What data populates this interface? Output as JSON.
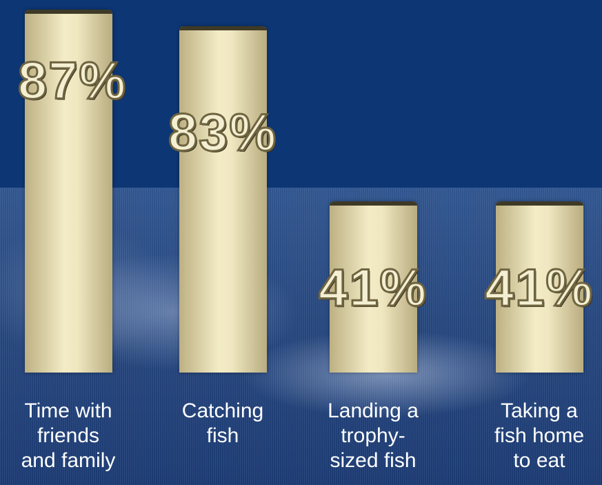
{
  "chart_data": {
    "type": "bar",
    "categories": [
      "Time with friends and family",
      "Catching fish",
      "Landing a trophy-sized fish",
      "Taking a fish home to eat"
    ],
    "category_lines": [
      [
        "Time with",
        "friends",
        "and family"
      ],
      [
        "Catching",
        "fish"
      ],
      [
        "Landing a",
        "trophy-",
        "sized fish"
      ],
      [
        "Taking a",
        "fish home",
        "to eat"
      ]
    ],
    "values": [
      87,
      83,
      41,
      41
    ],
    "data_labels": [
      "87%",
      "83%",
      "41%",
      "41%"
    ],
    "ylim": [
      0,
      100
    ],
    "colors": {
      "background": "#0d3674",
      "bar": "#f3ecc6",
      "label_text": "#f4efd2",
      "category_text": "#ffffff"
    }
  }
}
